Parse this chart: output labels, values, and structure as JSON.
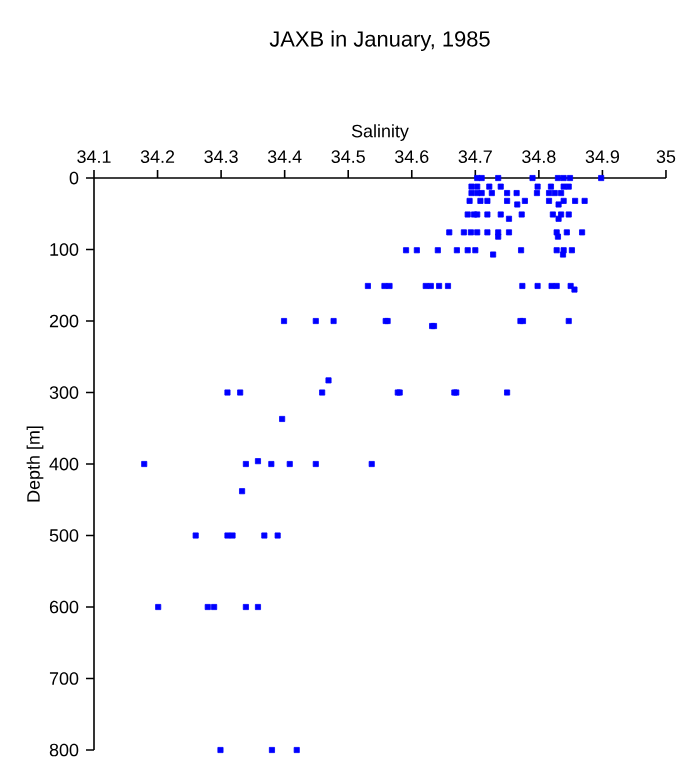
{
  "chart_data": {
    "type": "scatter",
    "title": "JAXB in January, 1985",
    "xlabel": "Salinity",
    "ylabel": "Depth [m]",
    "xlim": [
      34.1,
      35
    ],
    "xticks": [
      34.1,
      34.2,
      34.3,
      34.4,
      34.5,
      34.6,
      34.7,
      34.8,
      34.9,
      35
    ],
    "ylim": [
      800,
      0
    ],
    "yticks": [
      0,
      100,
      200,
      300,
      400,
      500,
      600,
      700,
      800
    ],
    "marker": "square",
    "grid": false,
    "series": [
      {
        "color": "#0000ff",
        "x": [
          34.703,
          34.71,
          34.736,
          34.79,
          34.83,
          34.839,
          34.849,
          34.898,
          34.694,
          34.703,
          34.722,
          34.74,
          34.798,
          34.819,
          34.839,
          34.847,
          34.694,
          34.703,
          34.71,
          34.726,
          34.75,
          34.765,
          34.797,
          34.816,
          34.825,
          34.835,
          34.691,
          34.708,
          34.719,
          34.75,
          34.778,
          34.816,
          34.839,
          34.857,
          34.872,
          34.766,
          34.831,
          34.688,
          34.698,
          34.703,
          34.719,
          34.74,
          34.773,
          34.822,
          34.835,
          34.847,
          34.753,
          34.831,
          34.659,
          34.682,
          34.693,
          34.703,
          34.719,
          34.736,
          34.753,
          34.828,
          34.844,
          34.868,
          34.83,
          34.736,
          34.591,
          34.608,
          34.641,
          34.671,
          34.688,
          34.7,
          34.772,
          34.828,
          34.839,
          34.852,
          34.728,
          34.838,
          34.531,
          34.557,
          34.565,
          34.622,
          34.63,
          34.643,
          34.657,
          34.774,
          34.798,
          34.82,
          34.828,
          34.85,
          34.856,
          34.399,
          34.449,
          34.477,
          34.559,
          34.562,
          34.771,
          34.775,
          34.847,
          34.632,
          34.635,
          34.469,
          34.31,
          34.33,
          34.459,
          34.578,
          34.667,
          34.581,
          34.67,
          34.75,
          34.396,
          34.179,
          34.339,
          34.358,
          34.379,
          34.408,
          34.449,
          34.537,
          34.333,
          34.26,
          34.31,
          34.318,
          34.368,
          34.389,
          34.201,
          34.279,
          34.289,
          34.339,
          34.358,
          34.299,
          34.38,
          34.419
        ],
        "values": [
          0,
          0,
          0,
          0,
          0,
          0,
          0,
          0,
          12,
          12,
          12,
          12,
          12,
          12,
          12,
          12,
          21,
          21,
          21,
          21,
          21,
          21,
          21,
          21,
          21,
          21,
          32,
          32,
          32,
          32,
          32,
          32,
          32,
          32,
          32,
          37,
          37,
          51,
          51,
          51,
          51,
          51,
          51,
          51,
          51,
          51,
          57,
          57,
          76,
          76,
          76,
          76,
          76,
          76,
          76,
          76,
          76,
          76,
          82,
          82,
          101,
          101,
          101,
          101,
          101,
          101,
          101,
          101,
          101,
          101,
          107,
          107,
          151,
          151,
          151,
          151,
          151,
          151,
          151,
          151,
          151,
          151,
          151,
          151,
          156,
          200,
          200,
          200,
          200,
          200,
          200,
          200,
          200,
          207,
          207,
          283,
          300,
          300,
          300,
          300,
          300,
          300,
          300,
          300,
          337,
          400,
          400,
          396,
          400,
          400,
          400,
          400,
          438,
          500,
          500,
          500,
          500,
          500,
          600,
          600,
          600,
          600,
          600,
          800,
          800,
          800
        ]
      }
    ]
  }
}
